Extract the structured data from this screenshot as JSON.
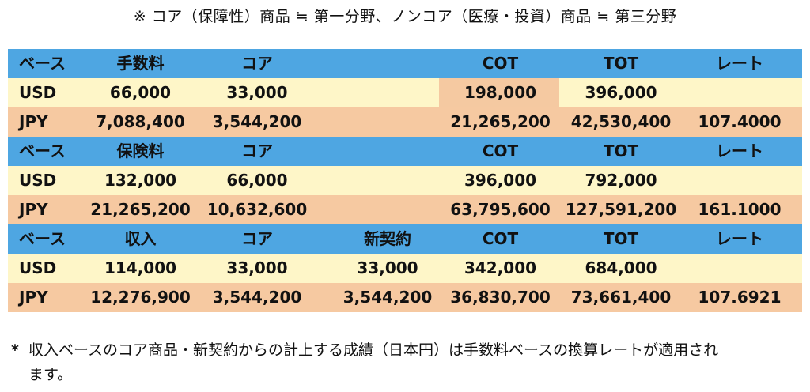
{
  "note_top": "※ コア（保障性）商品 ≒ 第一分野、ノンコア（医療・投資）商品 ≒ 第三分野",
  "colors": {
    "header_blue": "#4ea6e2",
    "usd_cream": "#fef6c8",
    "jpy_peach": "#f6c9a1",
    "highlight_cot": "#f5c9a1"
  },
  "tables": [
    {
      "header": [
        "ベース",
        "手数料",
        "コア",
        "",
        "COT",
        "TOT",
        "レート"
      ],
      "usd": [
        "USD",
        "66,000",
        "33,000",
        "",
        "198,000",
        "396,000",
        ""
      ],
      "jpy": [
        "JPY",
        "7,088,400",
        "3,544,200",
        "",
        "21,265,200",
        "42,530,400",
        "107.4000"
      ]
    },
    {
      "header": [
        "ベース",
        "保険料",
        "コア",
        "",
        "COT",
        "TOT",
        "レート"
      ],
      "usd": [
        "USD",
        "132,000",
        "66,000",
        "",
        "396,000",
        "792,000",
        ""
      ],
      "jpy": [
        "JPY",
        "21,265,200",
        "10,632,600",
        "",
        "63,795,600",
        "127,591,200",
        "161.1000"
      ]
    },
    {
      "header": [
        "ベース",
        "収入",
        "コア",
        "新契約",
        "COT",
        "TOT",
        "レート"
      ],
      "usd": [
        "USD",
        "114,000",
        "33,000",
        "33,000",
        "342,000",
        "684,000",
        ""
      ],
      "jpy": [
        "JPY",
        "12,276,900",
        "3,544,200",
        "3,544,200",
        "36,830,700",
        "73,661,400",
        "107.6921"
      ]
    }
  ],
  "footnote": {
    "marker": "*",
    "line1": "収入ベースのコア商品・新契約からの計上する成績（日本円）は手数料ベースの換算レートが適用され",
    "line2": "ます。"
  }
}
